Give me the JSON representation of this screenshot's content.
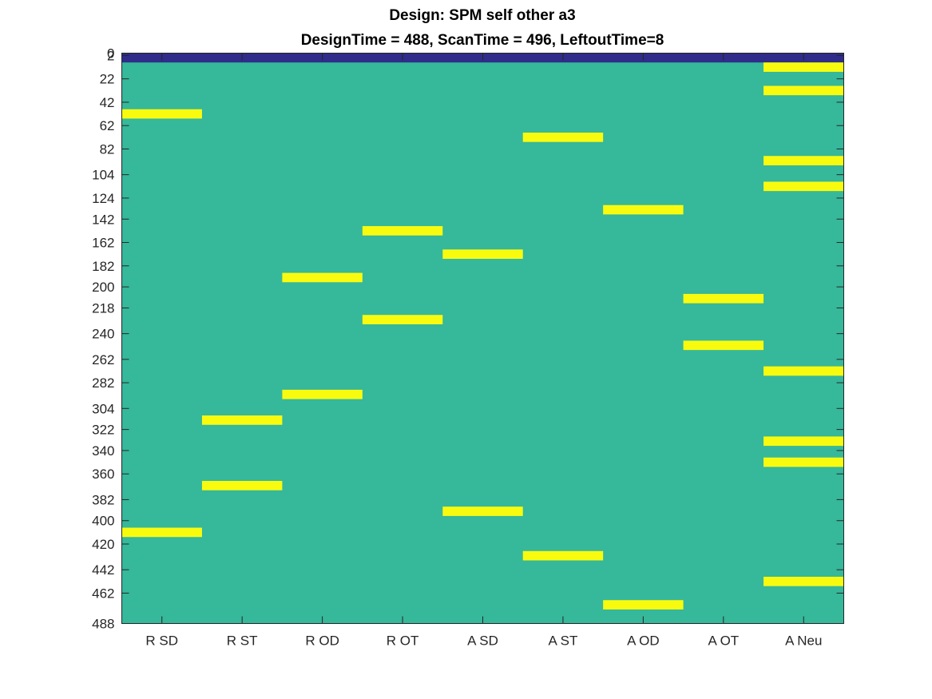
{
  "chart_data": {
    "type": "heatmap",
    "title": "Design: SPM self other a3",
    "subtitle": "DesignTime = 488, ScanTime = 496, LeftoutTime=8",
    "columns": [
      "R SD",
      "R ST",
      "R OD",
      "R OT",
      "A SD",
      "A ST",
      "A OD",
      "A OT",
      "A Neu"
    ],
    "y_ticks": [
      "0",
      "2",
      "22",
      "42",
      "62",
      "82",
      "104",
      "124",
      "142",
      "162",
      "182",
      "200",
      "218",
      "240",
      "262",
      "282",
      "304",
      "322",
      "340",
      "360",
      "382",
      "400",
      "420",
      "442",
      "462",
      "488"
    ],
    "ylim": [
      0,
      488
    ],
    "y_reversed": true,
    "colors": {
      "background": "#36b89a",
      "event": "#f9fb0e",
      "leftout": "#2f2c8a",
      "axis": "#262626"
    },
    "leftout_rows": [
      0,
      8
    ],
    "events": [
      {
        "column": "A Neu",
        "start": 8,
        "end": 16
      },
      {
        "column": "A Neu",
        "start": 28,
        "end": 36
      },
      {
        "column": "R SD",
        "start": 48,
        "end": 56
      },
      {
        "column": "A ST",
        "start": 68,
        "end": 76
      },
      {
        "column": "A Neu",
        "start": 88,
        "end": 96
      },
      {
        "column": "A Neu",
        "start": 110,
        "end": 118
      },
      {
        "column": "A OD",
        "start": 130,
        "end": 138
      },
      {
        "column": "R OT",
        "start": 148,
        "end": 156
      },
      {
        "column": "A SD",
        "start": 168,
        "end": 176
      },
      {
        "column": "R OD",
        "start": 188,
        "end": 196
      },
      {
        "column": "A OT",
        "start": 206,
        "end": 214
      },
      {
        "column": "R OT",
        "start": 224,
        "end": 232
      },
      {
        "column": "A OT",
        "start": 246,
        "end": 254
      },
      {
        "column": "A Neu",
        "start": 268,
        "end": 276
      },
      {
        "column": "R OD",
        "start": 288,
        "end": 296
      },
      {
        "column": "R ST",
        "start": 310,
        "end": 318
      },
      {
        "column": "A Neu",
        "start": 328,
        "end": 336
      },
      {
        "column": "A Neu",
        "start": 346,
        "end": 354
      },
      {
        "column": "R ST",
        "start": 366,
        "end": 374
      },
      {
        "column": "A SD",
        "start": 388,
        "end": 396
      },
      {
        "column": "R SD",
        "start": 406,
        "end": 414
      },
      {
        "column": "A ST",
        "start": 426,
        "end": 434
      },
      {
        "column": "A Neu",
        "start": 448,
        "end": 456
      },
      {
        "column": "A OD",
        "start": 468,
        "end": 476
      }
    ]
  }
}
